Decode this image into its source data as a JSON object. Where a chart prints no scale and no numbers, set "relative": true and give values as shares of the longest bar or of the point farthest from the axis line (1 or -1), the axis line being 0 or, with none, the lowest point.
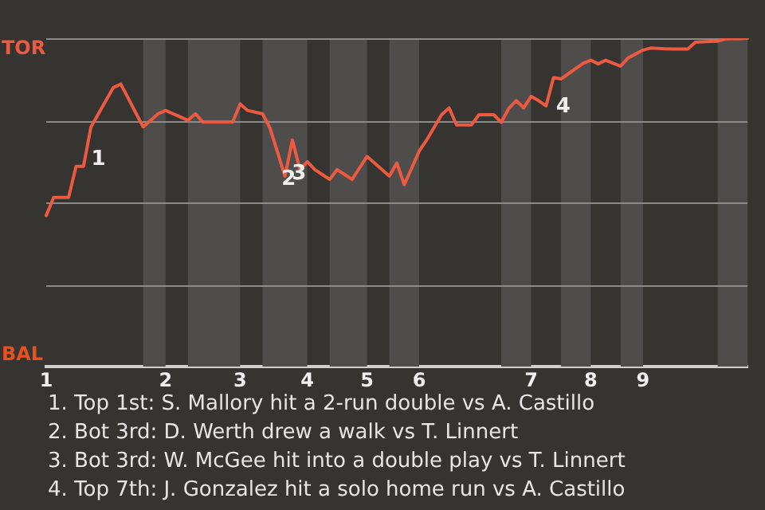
{
  "chart_data": {
    "type": "line",
    "relative": true,
    "categories": [
      "1",
      null,
      null,
      null,
      null,
      null,
      null,
      null,
      null,
      null,
      null,
      null,
      null,
      null,
      null,
      null,
      "2",
      null,
      null,
      null,
      null,
      null,
      null,
      null,
      null,
      null,
      "3",
      null,
      null,
      null,
      null,
      null,
      null,
      null,
      null,
      "4",
      null,
      null,
      null,
      null,
      null,
      null,
      null,
      "5",
      null,
      null,
      null,
      null,
      null,
      null,
      "6",
      null,
      null,
      null,
      null,
      null,
      null,
      null,
      null,
      null,
      null,
      null,
      null,
      null,
      null,
      "7",
      null,
      null,
      null,
      null,
      null,
      null,
      null,
      "8",
      null,
      null,
      null,
      null,
      null,
      null,
      "9",
      null,
      null,
      null,
      null,
      null,
      null,
      null,
      null,
      null,
      null,
      null,
      null,
      null,
      null
    ],
    "series": [
      {
        "color": "#ec5a42",
        "values": [
          0.46,
          0.515,
          0.515,
          0.515,
          0.61,
          0.61,
          0.73,
          0.77,
          0.81,
          0.85,
          0.86,
          0.817,
          0.773,
          0.73,
          0.75,
          0.77,
          0.78,
          0.77,
          0.76,
          0.75,
          0.77,
          0.745,
          0.745,
          0.745,
          0.745,
          0.745,
          0.8,
          0.78,
          0.775,
          0.77,
          0.726,
          0.653,
          0.58,
          0.69,
          0.6,
          0.624,
          0.6,
          0.585,
          0.57,
          0.6,
          0.585,
          0.57,
          0.605,
          0.64,
          0.62,
          0.6,
          0.58,
          0.62,
          0.554,
          0.605,
          0.656,
          0.69,
          0.729,
          0.767,
          0.788,
          0.736,
          0.736,
          0.736,
          0.767,
          0.767,
          0.767,
          0.744,
          0.786,
          0.81,
          0.788,
          0.823,
          0.81,
          0.794,
          0.88,
          0.876,
          0.892,
          0.908,
          0.924,
          0.933,
          0.922,
          0.933,
          0.924,
          0.915,
          0.94,
          0.952,
          0.964,
          0.97,
          0.969,
          0.968,
          0.967,
          0.967,
          0.967,
          0.988,
          0.989,
          0.99,
          0.991,
          0.998,
          0.999,
          0.999,
          1
        ]
      }
    ],
    "grid": "y",
    "legend": false,
    "marker": "none",
    "line_style": "solid",
    "annotations": [
      "TOR",
      "BAL",
      "1",
      "2",
      "3",
      "4",
      "1. Top 1st: S. Mallory hit a 2-run double vs A. Castillo",
      "2. Bot 3rd: D. Werth drew a walk vs T. Linnert",
      "3. Bot 3rd: W. McGee hit into a double play vs T. Linnert",
      "4. Top 7th: J. Gonzalez hit a solo home run vs A. Castillo"
    ]
  }
}
